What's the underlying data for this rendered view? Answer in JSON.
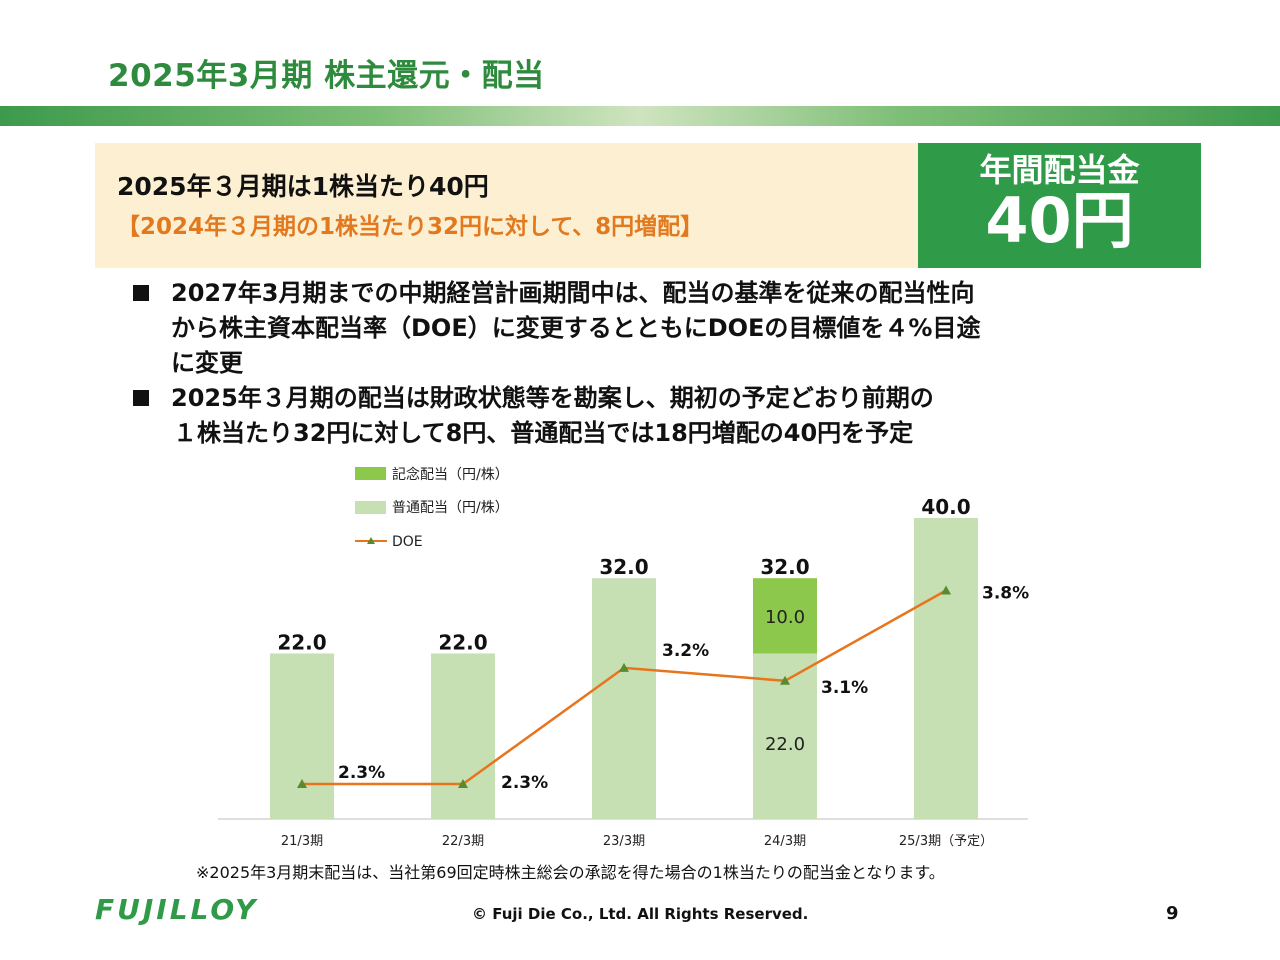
{
  "header": {
    "title": "2025年3月期 株主還元・配当"
  },
  "summary": {
    "line1": "2025年３月期は1株当たり40円",
    "line2": "【2024年３月期の1株当たり32円に対して、8円増配】"
  },
  "highlight": {
    "label": "年間配当金",
    "amount": "40円"
  },
  "bullets": [
    [
      "2027年3月期までの中期経営計画期間中は、配当の基準を従来の配当性向",
      "から株主資本配当率（DOE）に変更するとともにDOEの目標値を４%目途",
      "に変更"
    ],
    [
      "2025年３月期の配当は財政状態等を勘案し、期初の予定どおり前期の",
      "１株当たり32円に対して8円、普通配当では18円増配の40円を予定"
    ]
  ],
  "chart_data": {
    "type": "bar",
    "categories": [
      "21/3期",
      "22/3期",
      "23/3期",
      "24/3期",
      "25/3期（予定）"
    ],
    "series": [
      {
        "name": "記念配当（円/株）",
        "type": "bar",
        "values": [
          0,
          0,
          0,
          10.0,
          0
        ],
        "color": "#8cc84b"
      },
      {
        "name": "普通配当（円/株）",
        "type": "bar",
        "values": [
          22.0,
          22.0,
          32.0,
          22.0,
          40.0
        ],
        "color": "#c6e0b4"
      },
      {
        "name": "DOE",
        "type": "line",
        "values": [
          2.3,
          2.3,
          3.2,
          3.1,
          3.8
        ],
        "color": "#e8741c",
        "marker_color": "#5b8a2e"
      }
    ],
    "totals": [
      "22.0",
      "22.0",
      "32.0",
      "32.0",
      "40.0"
    ],
    "segment_labels": [
      {
        "index": 3,
        "series": "記念配当（円/株）",
        "label": "10.0"
      },
      {
        "index": 3,
        "series": "普通配当（円/株）",
        "label": "22.0"
      }
    ],
    "doe_labels": [
      "2.3%",
      "2.3%",
      "3.2%",
      "3.1%",
      "3.8%"
    ],
    "stacked": true,
    "legend_position": "top-left",
    "grid": false
  },
  "footer": {
    "note": "※2025年3月期末配当は、当社第69回定時株主総会の承認を得た場合の1株当たりの配当金となります。",
    "logo": "FUJILLOY",
    "copyright": "© Fuji Die Co., Ltd. All Rights Reserved.",
    "page_number": "9"
  }
}
